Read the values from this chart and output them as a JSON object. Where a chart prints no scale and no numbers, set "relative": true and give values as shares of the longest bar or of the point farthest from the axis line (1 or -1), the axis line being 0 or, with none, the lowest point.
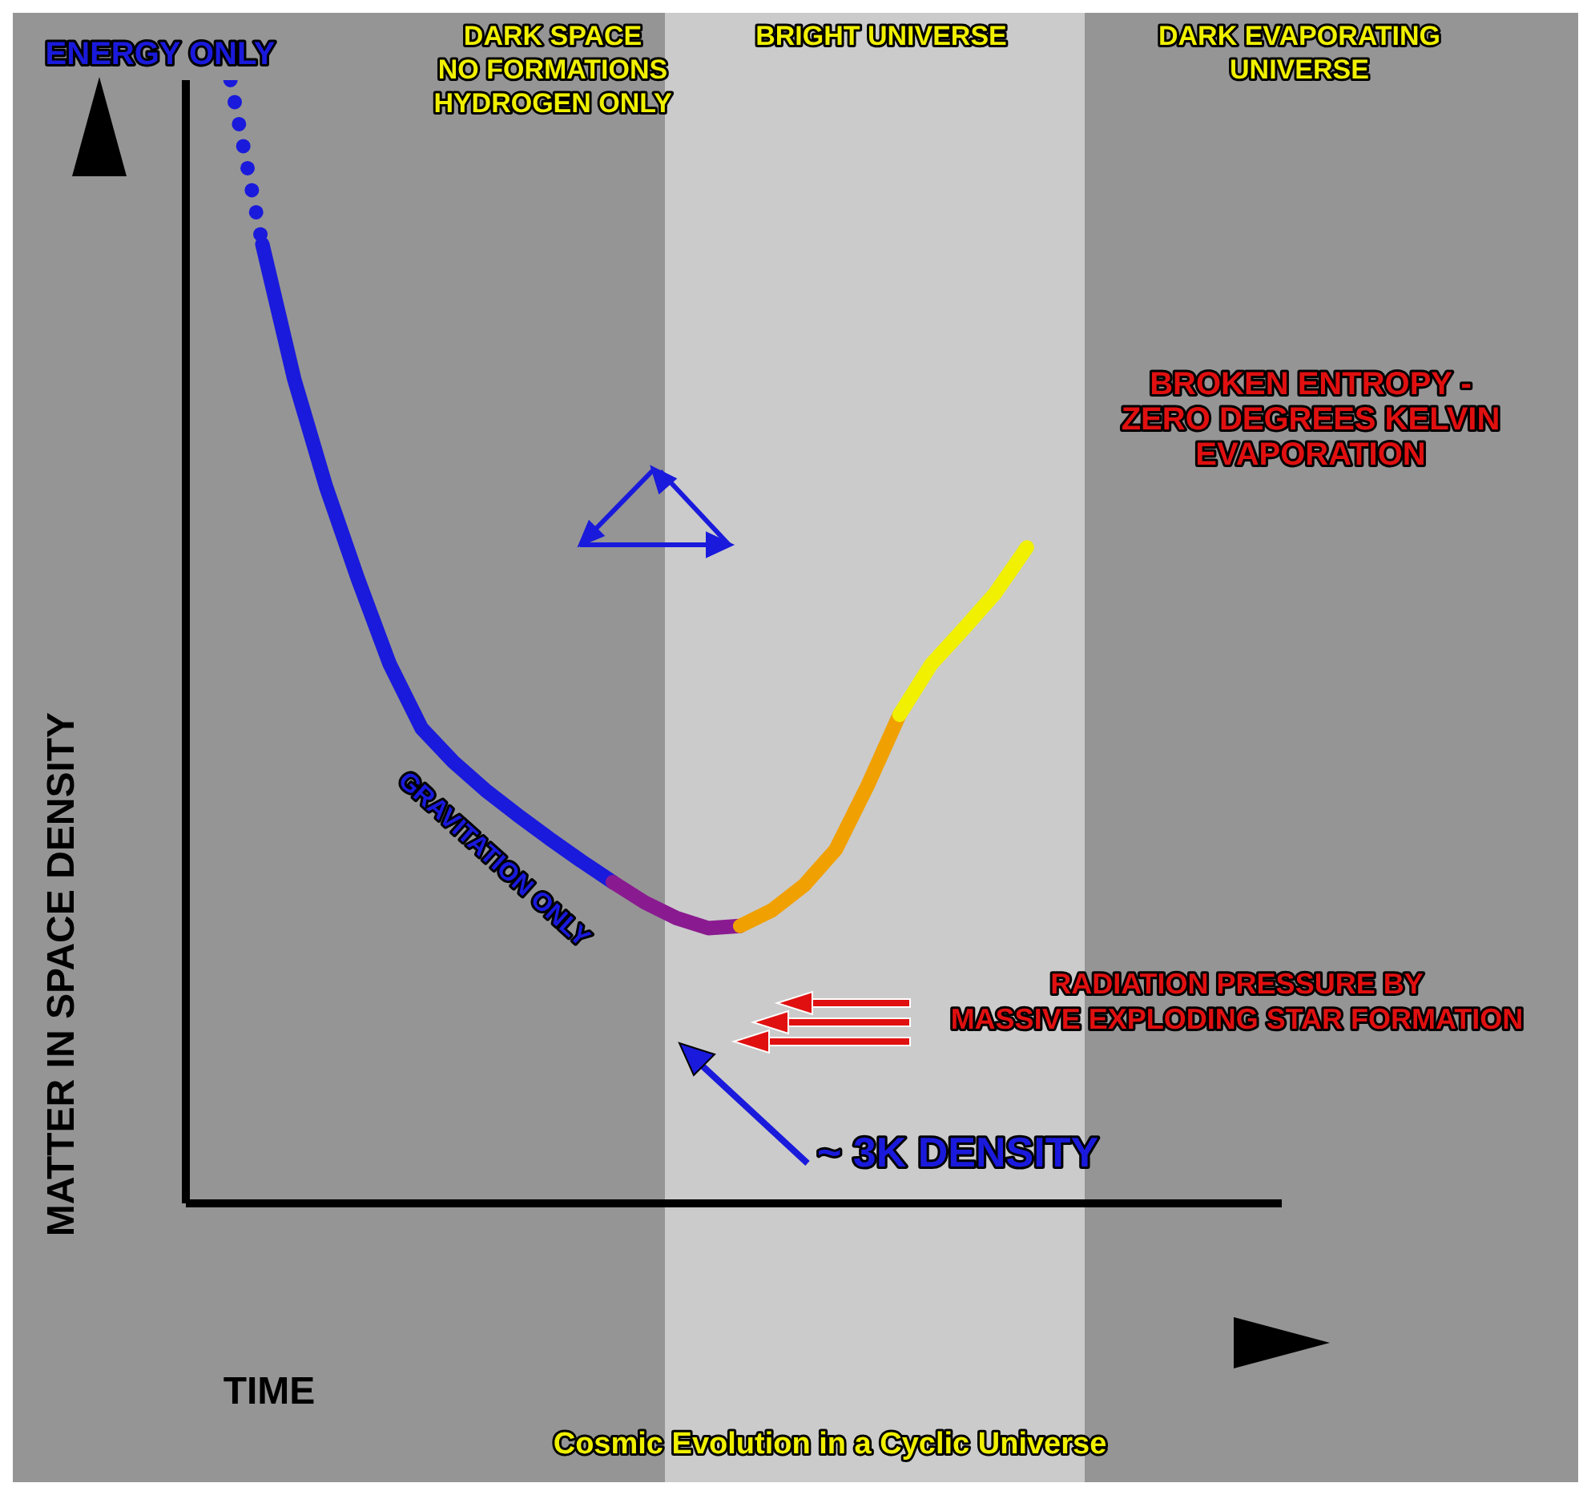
{
  "chart_data": {
    "type": "line",
    "title": "Cosmic Evolution in a Cyclic Universe",
    "xlabel": "TIME",
    "ylabel": "MATTER IN SPACE DENSITY",
    "relative": true,
    "marker": "none",
    "categories": [
      null,
      null,
      null,
      null,
      null,
      null,
      null,
      null,
      null,
      null,
      null,
      null,
      null,
      null,
      null,
      null,
      null,
      null,
      null,
      null,
      null,
      null,
      null,
      null,
      null,
      null,
      null,
      null,
      null,
      null,
      null,
      null,
      null,
      null
    ],
    "series": [
      {
        "color": "#1a1adc",
        "line_style": "dotted",
        "values": [
          1,
          0.854,
          null,
          null,
          null,
          null,
          null,
          null,
          null,
          null,
          null,
          null,
          null,
          null,
          null,
          null,
          null,
          null,
          null,
          null,
          null,
          null,
          null,
          null,
          null,
          null,
          null,
          null,
          null,
          null,
          null,
          null,
          null,
          null
        ]
      },
      {
        "color": "#1a1adc",
        "line_style": "solid",
        "values": [
          null,
          0.854,
          0.734,
          0.638,
          0.556,
          0.48,
          0.423,
          0.393,
          0.368,
          0.346,
          0.325,
          0.305,
          0.286,
          null,
          null,
          null,
          null,
          null,
          null,
          null,
          null,
          null,
          null,
          null,
          null,
          null,
          null,
          null,
          null,
          null,
          null,
          null,
          null,
          null
        ]
      },
      {
        "color": "#8a1a90",
        "line_style": "solid",
        "values": [
          null,
          null,
          null,
          null,
          null,
          null,
          null,
          null,
          null,
          null,
          null,
          null,
          0.286,
          0.268,
          0.254,
          0.245,
          0.247,
          null,
          null,
          null,
          null,
          null,
          null,
          null,
          null,
          null,
          null,
          null,
          null,
          null,
          null,
          null,
          null,
          null
        ]
      },
      {
        "color": "#f0a000",
        "line_style": "solid",
        "values": [
          null,
          null,
          null,
          null,
          null,
          null,
          null,
          null,
          null,
          null,
          null,
          null,
          null,
          null,
          null,
          null,
          0.247,
          0.261,
          0.283,
          0.315,
          0.372,
          0.435,
          null,
          null,
          null,
          null,
          null,
          null,
          null,
          null,
          null,
          null,
          null,
          null
        ]
      },
      {
        "color": "#f0f000",
        "line_style": "solid",
        "values": [
          null,
          null,
          null,
          null,
          null,
          null,
          null,
          null,
          null,
          null,
          null,
          null,
          null,
          null,
          null,
          null,
          null,
          null,
          null,
          null,
          null,
          0.435,
          0.48,
          0.511,
          0.543,
          0.584,
          null,
          null,
          null,
          null,
          null,
          null,
          null,
          null
        ]
      }
    ],
    "annotations": [
      "DARK SPACE\nNO  FORMATIONS\nHYDROGEN ONLY",
      "BRIGHT UNIVERSE",
      "DARK EVAPORATING\nUNIVERSE",
      "ENERGY ONLY",
      "GRAVITATION ONLY",
      "~ 3K  DENSITY",
      "RADIATION PRESSURE BY\nMASSIVE EXPLODING STAR FORMATION",
      "BROKEN ENTROPY  -\nZERO DEGREES KELVIN\nEVAPORATION"
    ]
  }
}
